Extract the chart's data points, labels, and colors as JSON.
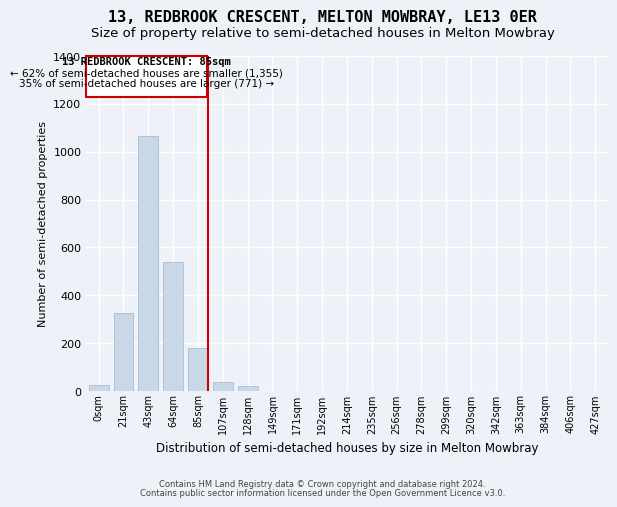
{
  "title": "13, REDBROOK CRESCENT, MELTON MOWBRAY, LE13 0ER",
  "subtitle": "Size of property relative to semi-detached houses in Melton Mowbray",
  "xlabel": "Distribution of semi-detached houses by size in Melton Mowbray",
  "ylabel": "Number of semi-detached properties",
  "bar_labels": [
    "0sqm",
    "21sqm",
    "43sqm",
    "64sqm",
    "85sqm",
    "107sqm",
    "128sqm",
    "149sqm",
    "171sqm",
    "192sqm",
    "214sqm",
    "235sqm",
    "256sqm",
    "278sqm",
    "299sqm",
    "320sqm",
    "342sqm",
    "363sqm",
    "384sqm",
    "406sqm",
    "427sqm"
  ],
  "bar_heights": [
    27,
    325,
    1065,
    540,
    180,
    37,
    20,
    0,
    0,
    0,
    0,
    0,
    0,
    0,
    0,
    0,
    0,
    0,
    0,
    0,
    0
  ],
  "bar_color": "#c8d8e8",
  "bar_edge_color": "#a8bece",
  "property_line_color": "#cc0000",
  "annotation_title": "13 REDBROOK CRESCENT: 85sqm",
  "annotation_line1": "← 62% of semi-detached houses are smaller (1,355)",
  "annotation_line2": "35% of semi-detached houses are larger (771) →",
  "annotation_box_color": "#cc0000",
  "ylim": [
    0,
    1400
  ],
  "yticks": [
    0,
    200,
    400,
    600,
    800,
    1000,
    1200,
    1400
  ],
  "footer1": "Contains HM Land Registry data © Crown copyright and database right 2024.",
  "footer2": "Contains public sector information licensed under the Open Government Licence v3.0.",
  "bg_color": "#eef2f8",
  "plot_bg_color": "#eef2f8",
  "grid_color": "#ffffff",
  "title_fontsize": 11,
  "subtitle_fontsize": 9.5
}
